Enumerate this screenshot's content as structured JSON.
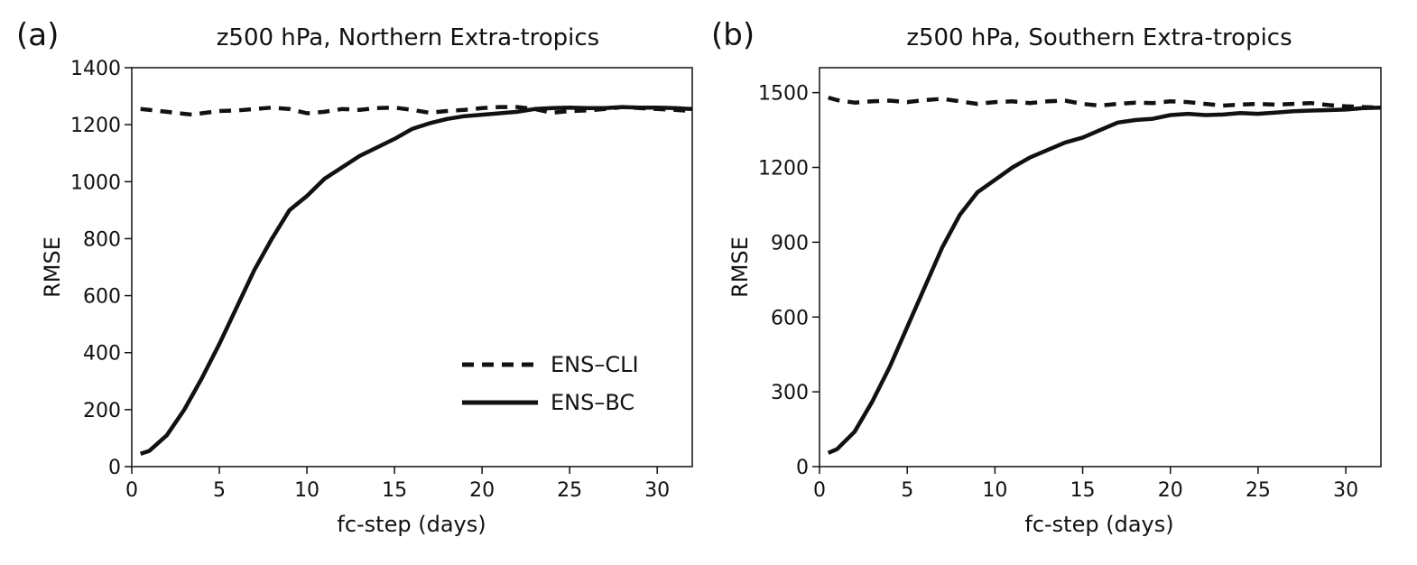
{
  "chart_data": [
    {
      "type": "line",
      "panel_label": "(a)",
      "title": "z500 hPa,  Northern Extra-tropics",
      "xlabel": "fc-step (days)",
      "ylabel": "RMSE",
      "xlim": [
        0,
        32
      ],
      "ylim": [
        0,
        1400
      ],
      "xticks": [
        0,
        5,
        10,
        15,
        20,
        25,
        30
      ],
      "yticks": [
        0,
        200,
        400,
        600,
        800,
        1000,
        1200,
        1400
      ],
      "grid": false,
      "legend": "bottom-right",
      "series": [
        {
          "name": "ENS–CLI",
          "style": "dashed",
          "x": [
            0.5,
            1,
            2,
            3,
            3.5,
            4,
            5,
            6,
            7,
            8,
            9,
            10,
            11,
            12,
            13,
            14,
            15,
            16,
            17,
            18,
            19,
            20,
            21,
            22,
            23,
            24,
            25,
            26,
            27,
            28,
            29,
            30,
            31,
            32
          ],
          "y": [
            1255,
            1252,
            1245,
            1238,
            1235,
            1240,
            1248,
            1250,
            1255,
            1260,
            1255,
            1240,
            1245,
            1255,
            1252,
            1258,
            1260,
            1252,
            1242,
            1248,
            1252,
            1258,
            1262,
            1262,
            1255,
            1242,
            1248,
            1250,
            1255,
            1262,
            1258,
            1255,
            1252,
            1248
          ]
        },
        {
          "name": "ENS–BC",
          "style": "solid",
          "x": [
            0.5,
            1,
            2,
            3,
            4,
            5,
            6,
            7,
            8,
            9,
            10,
            11,
            12,
            13,
            14,
            15,
            16,
            17,
            18,
            19,
            20,
            21,
            22,
            23,
            24,
            25,
            26,
            27,
            28,
            29,
            30,
            31,
            32
          ],
          "y": [
            45,
            55,
            110,
            200,
            310,
            430,
            560,
            690,
            800,
            900,
            950,
            1010,
            1050,
            1090,
            1120,
            1150,
            1185,
            1205,
            1220,
            1230,
            1235,
            1240,
            1245,
            1255,
            1258,
            1260,
            1258,
            1258,
            1262,
            1260,
            1260,
            1258,
            1255
          ]
        }
      ]
    },
    {
      "type": "line",
      "panel_label": "(b)",
      "title": "z500 hPa,  Southern Extra-tropics",
      "xlabel": "fc-step (days)",
      "ylabel": "RMSE",
      "xlim": [
        0,
        32
      ],
      "ylim": [
        0,
        1600
      ],
      "xticks": [
        0,
        5,
        10,
        15,
        20,
        25,
        30
      ],
      "yticks": [
        0,
        300,
        600,
        900,
        1200,
        1500
      ],
      "grid": false,
      "series": [
        {
          "name": "ENS–CLI",
          "style": "dashed",
          "x": [
            0.5,
            1,
            2,
            3,
            4,
            5,
            6,
            7,
            8,
            9,
            10,
            11,
            12,
            13,
            14,
            15,
            16,
            17,
            18,
            19,
            20,
            21,
            22,
            23,
            24,
            25,
            26,
            27,
            28,
            29,
            30,
            31,
            32
          ],
          "y": [
            1480,
            1470,
            1460,
            1465,
            1468,
            1462,
            1470,
            1475,
            1465,
            1455,
            1462,
            1465,
            1458,
            1465,
            1468,
            1455,
            1448,
            1455,
            1460,
            1458,
            1465,
            1462,
            1455,
            1448,
            1452,
            1455,
            1452,
            1455,
            1458,
            1450,
            1445,
            1442,
            1440
          ]
        },
        {
          "name": "ENS–BC",
          "style": "solid",
          "x": [
            0.5,
            1,
            2,
            3,
            4,
            5,
            6,
            7,
            8,
            9,
            10,
            11,
            12,
            13,
            14,
            15,
            16,
            17,
            18,
            19,
            20,
            21,
            22,
            23,
            24,
            25,
            26,
            27,
            28,
            29,
            30,
            31,
            32
          ],
          "y": [
            55,
            70,
            140,
            260,
            400,
            560,
            720,
            880,
            1010,
            1100,
            1150,
            1200,
            1240,
            1270,
            1300,
            1320,
            1350,
            1380,
            1390,
            1395,
            1410,
            1415,
            1410,
            1412,
            1418,
            1415,
            1420,
            1425,
            1428,
            1430,
            1432,
            1438,
            1440
          ]
        }
      ]
    }
  ]
}
